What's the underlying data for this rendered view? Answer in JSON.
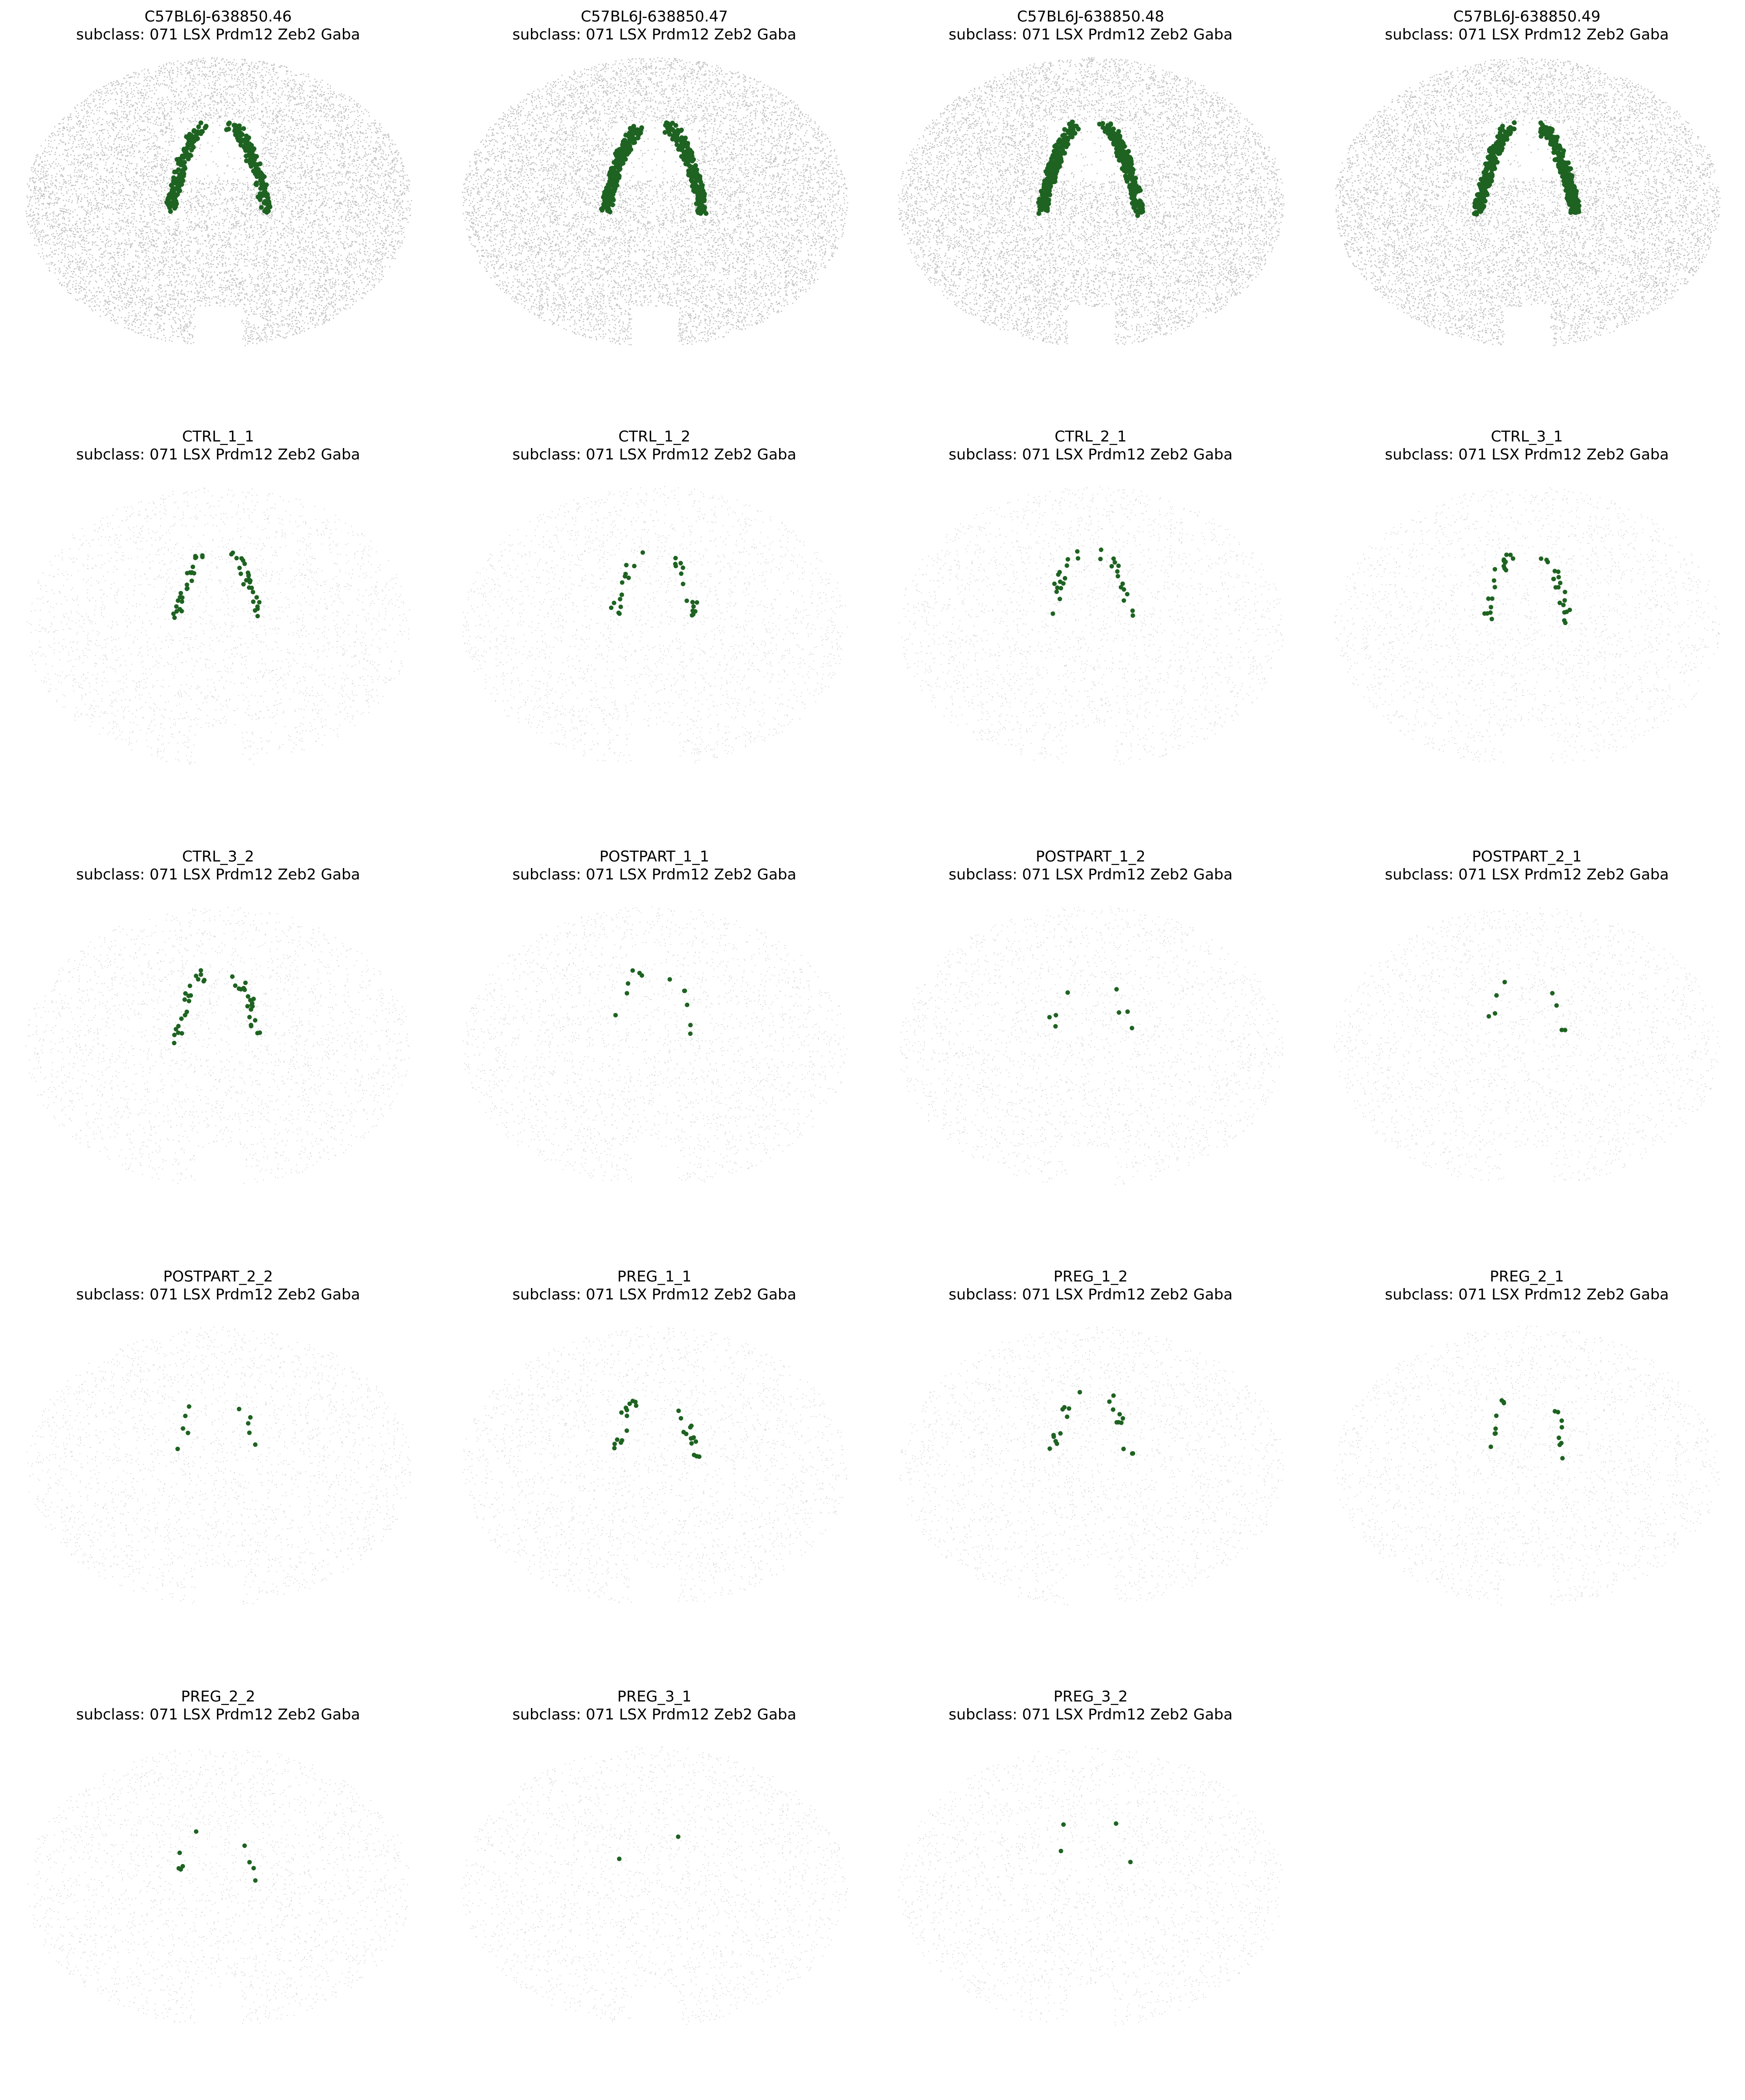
{
  "colors": {
    "background_cells": "#8f8f8f",
    "highlight_cells": "#1e6321",
    "text": "#000000"
  },
  "chart_data": {
    "type": "scatter",
    "layout": "grid",
    "rows": 5,
    "cols": 4,
    "subtitle": "subclass: 071 LSX Prdm12 Zeb2 Gaba",
    "axes_visible": false,
    "panels": [
      {
        "title": "C57BL6J-638850.46",
        "subtitle": "subclass: 071 LSX Prdm12 Zeb2 Gaba",
        "style": "dense",
        "highlight_count": 300
      },
      {
        "title": "C57BL6J-638850.47",
        "subtitle": "subclass: 071 LSX Prdm12 Zeb2 Gaba",
        "style": "dense",
        "highlight_count": 420
      },
      {
        "title": "C57BL6J-638850.48",
        "subtitle": "subclass: 071 LSX Prdm12 Zeb2 Gaba",
        "style": "dense",
        "highlight_count": 460
      },
      {
        "title": "C57BL6J-638850.49",
        "subtitle": "subclass: 071 LSX Prdm12 Zeb2 Gaba",
        "style": "dense",
        "highlight_count": 440
      },
      {
        "title": "CTRL_1_1",
        "subtitle": "subclass: 071 LSX Prdm12 Zeb2 Gaba",
        "style": "sparse",
        "highlight_count": 52
      },
      {
        "title": "CTRL_1_2",
        "subtitle": "subclass: 071 LSX Prdm12 Zeb2 Gaba",
        "style": "sparse",
        "highlight_count": 30
      },
      {
        "title": "CTRL_2_1",
        "subtitle": "subclass: 071 LSX Prdm12 Zeb2 Gaba",
        "style": "sparse",
        "highlight_count": 30
      },
      {
        "title": "CTRL_3_1",
        "subtitle": "subclass: 071 LSX Prdm12 Zeb2 Gaba",
        "style": "sparse",
        "highlight_count": 40
      },
      {
        "title": "CTRL_3_2",
        "subtitle": "subclass: 071 LSX Prdm12 Zeb2 Gaba",
        "style": "sparse",
        "highlight_count": 42
      },
      {
        "title": "POSTPART_1_1",
        "subtitle": "subclass: 071 LSX Prdm12 Zeb2 Gaba",
        "style": "sparse",
        "highlight_count": 12
      },
      {
        "title": "POSTPART_1_2",
        "subtitle": "subclass: 071 LSX Prdm12 Zeb2 Gaba",
        "style": "sparse",
        "highlight_count": 8
      },
      {
        "title": "POSTPART_2_1",
        "subtitle": "subclass: 071 LSX Prdm12 Zeb2 Gaba",
        "style": "sparse",
        "highlight_count": 8
      },
      {
        "title": "POSTPART_2_2",
        "subtitle": "subclass: 071 LSX Prdm12 Zeb2 Gaba",
        "style": "sparse",
        "highlight_count": 10
      },
      {
        "title": "PREG_1_1",
        "subtitle": "subclass: 071 LSX Prdm12 Zeb2 Gaba",
        "style": "sparse",
        "highlight_count": 28
      },
      {
        "title": "PREG_1_2",
        "subtitle": "subclass: 071 LSX Prdm12 Zeb2 Gaba",
        "style": "sparse",
        "highlight_count": 22
      },
      {
        "title": "PREG_2_1",
        "subtitle": "subclass: 071 LSX Prdm12 Zeb2 Gaba",
        "style": "sparse",
        "highlight_count": 16
      },
      {
        "title": "PREG_2_2",
        "subtitle": "subclass: 071 LSX Prdm12 Zeb2 Gaba",
        "style": "sparse",
        "highlight_count": 9
      },
      {
        "title": "PREG_3_1",
        "subtitle": "subclass: 071 LSX Prdm12 Zeb2 Gaba",
        "style": "sparse",
        "highlight_count": 2
      },
      {
        "title": "PREG_3_2",
        "subtitle": "subclass: 071 LSX Prdm12 Zeb2 Gaba",
        "style": "sparse",
        "highlight_count": 4
      }
    ]
  }
}
